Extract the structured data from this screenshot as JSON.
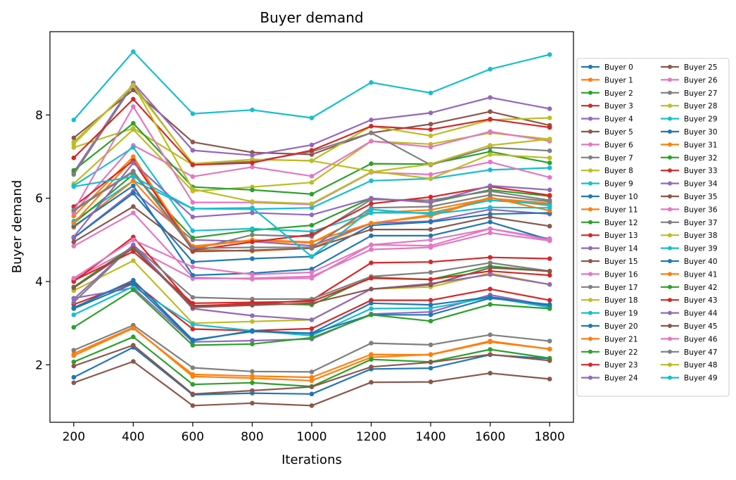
{
  "chart_data": {
    "type": "line",
    "title": "Buyer demand",
    "xlabel": "Iterations",
    "ylabel": "Buyer demand",
    "x": [
      200,
      400,
      600,
      800,
      1000,
      1200,
      1400,
      1600,
      1800
    ],
    "xticks": [
      "200",
      "400",
      "600",
      "800",
      "1000",
      "1200",
      "1400",
      "1600",
      "1800"
    ],
    "yticks": [
      2,
      4,
      6,
      8
    ],
    "xlim": [
      120,
      1880
    ],
    "ylim": [
      0.62,
      10.0
    ],
    "legend_position": "right",
    "series": [
      {
        "name": "Buyer 0",
        "color": "#1f77b4",
        "values": [
          1.7,
          2.42,
          1.28,
          1.32,
          1.3,
          1.9,
          1.92,
          2.24,
          2.15
        ]
      },
      {
        "name": "Buyer 1",
        "color": "#ff7f0e",
        "values": [
          2.27,
          2.9,
          1.72,
          1.68,
          1.62,
          2.18,
          2.25,
          2.57,
          2.38
        ]
      },
      {
        "name": "Buyer 2",
        "color": "#2ca02c",
        "values": [
          2.07,
          2.67,
          1.53,
          1.57,
          1.48,
          2.13,
          2.07,
          2.37,
          2.16
        ]
      },
      {
        "name": "Buyer 3",
        "color": "#d62728",
        "values": [
          3.45,
          3.98,
          2.86,
          2.82,
          2.87,
          3.55,
          3.55,
          3.82,
          3.55
        ]
      },
      {
        "name": "Buyer 4",
        "color": "#9467bd",
        "values": [
          3.6,
          3.85,
          2.55,
          2.58,
          2.62,
          3.22,
          3.27,
          3.68,
          3.42
        ]
      },
      {
        "name": "Buyer 5",
        "color": "#8c564b",
        "values": [
          1.97,
          2.47,
          1.3,
          1.38,
          1.47,
          1.95,
          2.06,
          2.25,
          2.1
        ]
      },
      {
        "name": "Buyer 6",
        "color": "#e377c2",
        "values": [
          4.05,
          4.82,
          4.07,
          4.08,
          4.12,
          4.77,
          4.82,
          5.17,
          4.98
        ]
      },
      {
        "name": "Buyer 7",
        "color": "#7f7f7f",
        "values": [
          2.35,
          2.95,
          1.93,
          1.84,
          1.83,
          2.52,
          2.48,
          2.72,
          2.57
        ]
      },
      {
        "name": "Buyer 8",
        "color": "#bcbd22",
        "values": [
          3.78,
          4.5,
          3.0,
          3.04,
          3.08,
          3.82,
          3.87,
          4.2,
          3.93
        ]
      },
      {
        "name": "Buyer 9",
        "color": "#17becf",
        "values": [
          3.2,
          3.88,
          2.97,
          2.82,
          2.7,
          3.35,
          3.36,
          3.62,
          3.38
        ]
      },
      {
        "name": "Buyer 10",
        "color": "#1f77b4",
        "values": [
          3.37,
          4.03,
          2.6,
          2.8,
          2.76,
          3.48,
          3.44,
          3.63,
          3.42
        ]
      },
      {
        "name": "Buyer 11",
        "color": "#ff7f0e",
        "values": [
          5.57,
          7.0,
          4.77,
          4.73,
          4.8,
          5.4,
          5.57,
          6.0,
          5.82
        ]
      },
      {
        "name": "Buyer 12",
        "color": "#2ca02c",
        "values": [
          3.87,
          4.85,
          3.4,
          3.48,
          3.44,
          4.1,
          4.05,
          4.37,
          4.24
        ]
      },
      {
        "name": "Buyer 13",
        "color": "#d62728",
        "values": [
          4.0,
          5.07,
          3.42,
          3.46,
          3.55,
          4.45,
          4.47,
          4.58,
          4.55
        ]
      },
      {
        "name": "Buyer 14",
        "color": "#9467bd",
        "values": [
          5.05,
          6.17,
          5.0,
          4.96,
          4.86,
          5.4,
          5.45,
          5.73,
          5.62
        ]
      },
      {
        "name": "Buyer 15",
        "color": "#8c564b",
        "values": [
          7.45,
          8.6,
          7.35,
          7.1,
          7.05,
          7.57,
          7.78,
          8.08,
          7.75
        ]
      },
      {
        "name": "Buyer 16",
        "color": "#e377c2",
        "values": [
          4.85,
          5.65,
          4.1,
          4.06,
          4.08,
          4.88,
          4.86,
          5.27,
          5.03
        ]
      },
      {
        "name": "Buyer 17",
        "color": "#7f7f7f",
        "values": [
          3.5,
          4.88,
          3.62,
          3.58,
          3.58,
          4.12,
          4.22,
          4.45,
          4.25
        ]
      },
      {
        "name": "Buyer 18",
        "color": "#bcbd22",
        "values": [
          6.35,
          7.65,
          6.17,
          6.27,
          6.38,
          7.37,
          7.3,
          7.57,
          7.42
        ]
      },
      {
        "name": "Buyer 19",
        "color": "#17becf",
        "values": [
          5.45,
          6.42,
          5.75,
          5.74,
          5.77,
          6.42,
          6.47,
          6.68,
          6.73
        ]
      },
      {
        "name": "Buyer 20",
        "color": "#1f77b4",
        "values": [
          5.05,
          6.12,
          4.47,
          4.55,
          4.6,
          5.35,
          5.43,
          5.62,
          5.65
        ]
      },
      {
        "name": "Buyer 21",
        "color": "#ff7f0e",
        "values": [
          5.3,
          6.42,
          4.85,
          4.98,
          4.93,
          5.65,
          5.72,
          6.0,
          5.88
        ]
      },
      {
        "name": "Buyer 22",
        "color": "#2ca02c",
        "values": [
          5.4,
          6.57,
          5.05,
          5.23,
          5.35,
          6.0,
          5.9,
          6.2,
          6.05
        ]
      },
      {
        "name": "Buyer 23",
        "color": "#d62728",
        "values": [
          4.02,
          4.72,
          3.48,
          3.5,
          3.52,
          4.08,
          4.05,
          4.25,
          4.15
        ]
      },
      {
        "name": "Buyer 24",
        "color": "#9467bd",
        "values": [
          6.62,
          8.77,
          7.15,
          7.03,
          7.28,
          7.88,
          8.05,
          8.42,
          8.15
        ]
      },
      {
        "name": "Buyer 25",
        "color": "#8c564b",
        "values": [
          4.95,
          5.8,
          4.72,
          4.75,
          4.8,
          5.25,
          5.25,
          5.55,
          5.33
        ]
      },
      {
        "name": "Buyer 26",
        "color": "#e377c2",
        "values": [
          5.65,
          7.27,
          6.52,
          6.75,
          6.53,
          7.37,
          7.23,
          7.6,
          7.37
        ]
      },
      {
        "name": "Buyer 27",
        "color": "#7f7f7f",
        "values": [
          5.7,
          6.63,
          4.77,
          5.12,
          5.08,
          5.97,
          5.95,
          6.17,
          5.95
        ]
      },
      {
        "name": "Buyer 28",
        "color": "#bcbd22",
        "values": [
          7.22,
          7.68,
          6.8,
          6.93,
          6.9,
          7.73,
          7.5,
          7.88,
          7.93
        ]
      },
      {
        "name": "Buyer 29",
        "color": "#17becf",
        "values": [
          6.3,
          7.22,
          5.22,
          5.27,
          5.2,
          5.65,
          5.65,
          5.95,
          5.85
        ]
      },
      {
        "name": "Buyer 30",
        "color": "#1f77b4",
        "values": [
          5.33,
          6.3,
          4.15,
          4.2,
          4.3,
          5.1,
          5.1,
          5.43,
          5.0
        ]
      },
      {
        "name": "Buyer 31",
        "color": "#ff7f0e",
        "values": [
          5.4,
          6.95,
          4.82,
          5.0,
          4.95,
          5.4,
          5.6,
          6.02,
          5.7
        ]
      },
      {
        "name": "Buyer 32",
        "color": "#2ca02c",
        "values": [
          6.67,
          7.8,
          6.27,
          6.2,
          6.1,
          6.83,
          6.82,
          7.12,
          6.85
        ]
      },
      {
        "name": "Buyer 33",
        "color": "#d62728",
        "values": [
          5.8,
          6.9,
          4.75,
          4.95,
          5.13,
          5.87,
          6.03,
          6.28,
          6.07
        ]
      },
      {
        "name": "Buyer 34",
        "color": "#9467bd",
        "values": [
          5.07,
          6.85,
          5.55,
          5.65,
          5.6,
          6.0,
          5.9,
          6.3,
          6.2
        ]
      },
      {
        "name": "Buyer 35",
        "color": "#8c564b",
        "values": [
          1.57,
          2.08,
          1.02,
          1.08,
          1.02,
          1.58,
          1.59,
          1.8,
          1.66
        ]
      },
      {
        "name": "Buyer 36",
        "color": "#e377c2",
        "values": [
          5.7,
          8.2,
          5.9,
          5.9,
          5.85,
          6.62,
          6.57,
          6.87,
          6.5
        ]
      },
      {
        "name": "Buyer 37",
        "color": "#7f7f7f",
        "values": [
          6.57,
          8.73,
          6.82,
          6.88,
          7.12,
          7.57,
          6.8,
          7.22,
          7.14
        ]
      },
      {
        "name": "Buyer 38",
        "color": "#bcbd22",
        "values": [
          7.35,
          8.7,
          6.83,
          6.93,
          6.9,
          6.65,
          6.47,
          7.05,
          6.97
        ]
      },
      {
        "name": "Buyer 39",
        "color": "#17becf",
        "values": [
          7.88,
          9.52,
          8.03,
          8.12,
          7.93,
          8.78,
          8.53,
          9.1,
          9.45
        ]
      },
      {
        "name": "Buyer 40",
        "color": "#1f77b4",
        "values": [
          3.35,
          3.95,
          2.58,
          2.82,
          2.75,
          3.2,
          3.2,
          3.6,
          3.45
        ]
      },
      {
        "name": "Buyer 41",
        "color": "#ff7f0e",
        "values": [
          2.22,
          2.88,
          1.77,
          1.73,
          1.7,
          2.25,
          2.24,
          2.55,
          2.38
        ]
      },
      {
        "name": "Buyer 42",
        "color": "#2ca02c",
        "values": [
          2.9,
          3.8,
          2.47,
          2.5,
          2.65,
          3.2,
          3.05,
          3.45,
          3.35
        ]
      },
      {
        "name": "Buyer 43",
        "color": "#d62728",
        "values": [
          6.97,
          8.38,
          6.8,
          6.85,
          7.15,
          7.73,
          7.65,
          7.9,
          7.7
        ]
      },
      {
        "name": "Buyer 44",
        "color": "#9467bd",
        "values": [
          3.58,
          4.88,
          3.35,
          3.18,
          3.08,
          3.82,
          3.95,
          4.17,
          3.93
        ]
      },
      {
        "name": "Buyer 45",
        "color": "#8c564b",
        "values": [
          3.85,
          4.8,
          3.38,
          3.43,
          3.48,
          3.82,
          3.92,
          4.33,
          4.25
        ]
      },
      {
        "name": "Buyer 46",
        "color": "#e377c2",
        "values": [
          4.08,
          5.0,
          4.35,
          4.17,
          4.22,
          4.88,
          5.0,
          5.27,
          5.0
        ]
      },
      {
        "name": "Buyer 47",
        "color": "#7f7f7f",
        "values": [
          5.72,
          6.65,
          4.8,
          4.82,
          4.82,
          5.77,
          5.8,
          6.08,
          5.92
        ]
      },
      {
        "name": "Buyer 48",
        "color": "#bcbd22",
        "values": [
          7.3,
          8.72,
          6.22,
          5.92,
          5.87,
          6.63,
          6.82,
          7.27,
          7.42
        ]
      },
      {
        "name": "Buyer 49",
        "color": "#17becf",
        "values": [
          6.28,
          6.52,
          5.75,
          5.77,
          4.6,
          5.73,
          5.62,
          5.78,
          5.77
        ]
      }
    ]
  }
}
